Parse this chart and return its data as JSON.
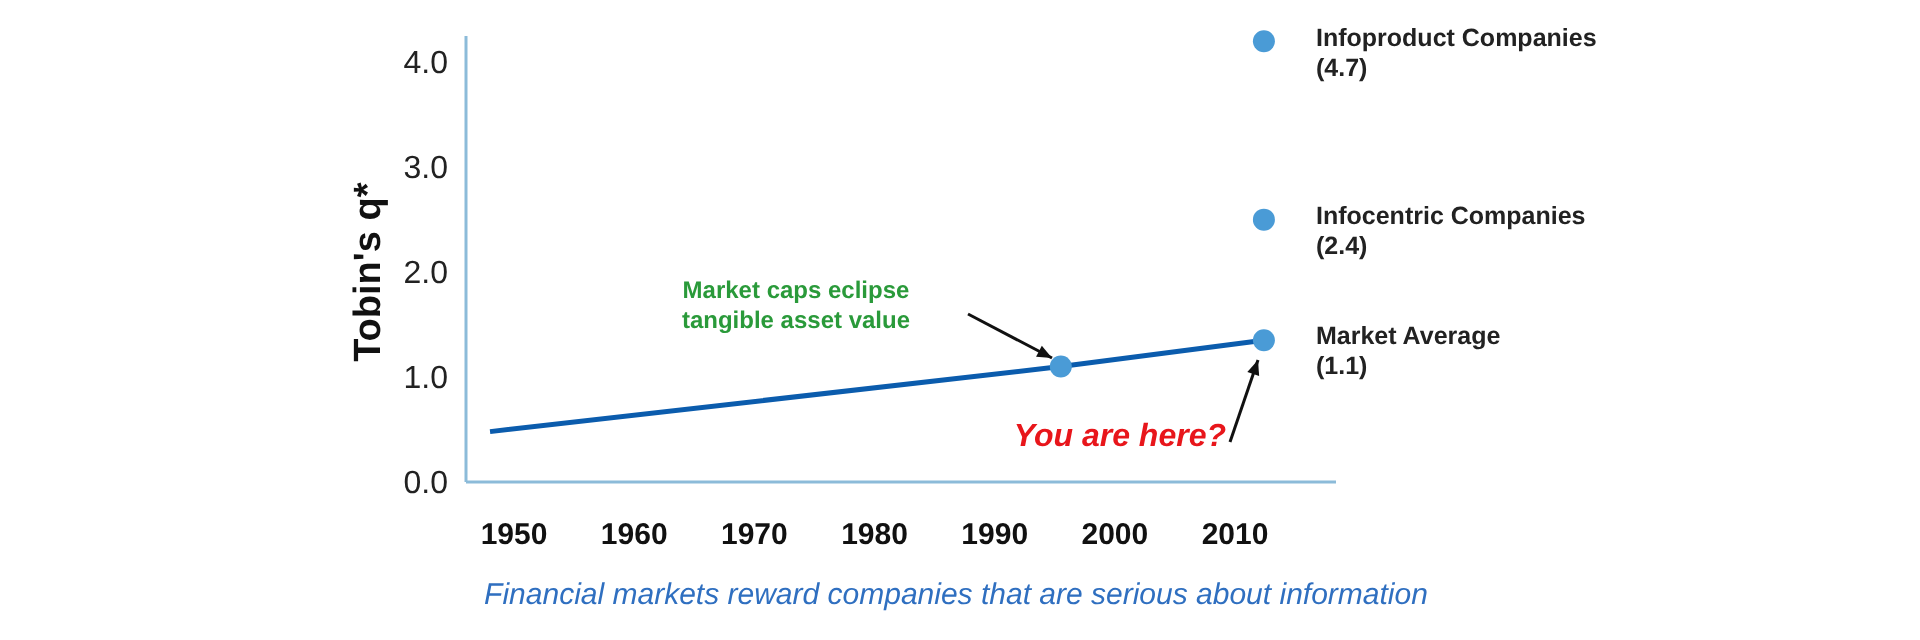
{
  "chart_data": {
    "type": "line",
    "ylabel": "Tobin's q*",
    "xlim": [
      1946,
      2018.4
    ],
    "ylim": [
      0,
      4.25
    ],
    "xticks": [
      1950,
      1960,
      1970,
      1980,
      1990,
      2000,
      2010
    ],
    "yticks": [
      {
        "value": 0,
        "label": "0.0"
      },
      {
        "value": 1,
        "label": "1.0"
      },
      {
        "value": 2,
        "label": "2.0"
      },
      {
        "value": 3,
        "label": "3.0"
      },
      {
        "value": 4,
        "label": "4.0"
      }
    ],
    "grid": false,
    "series": [
      {
        "type": "line",
        "color": "#0b5cad",
        "marker": "none",
        "x": [
          1948,
          1995.5,
          2012.4
        ],
        "values": [
          0.48,
          1.1,
          1.35
        ]
      },
      {
        "type": "scatter",
        "color": "#4a9bd6",
        "marker": "circle",
        "x": [
          1995.5,
          2012.4,
          2012.4,
          2012.4
        ],
        "values": [
          1.1,
          1.35,
          2.5,
          4.2
        ]
      }
    ],
    "annotations": [
      "Market caps eclipse\ntangible asset value",
      "You are here?",
      "Infoproduct Companies\n(4.7)",
      "Infocentric Companies\n(2.4)",
      "Market Average\n(1.1)",
      "Financial markets reward companies that are serious about information"
    ]
  }
}
